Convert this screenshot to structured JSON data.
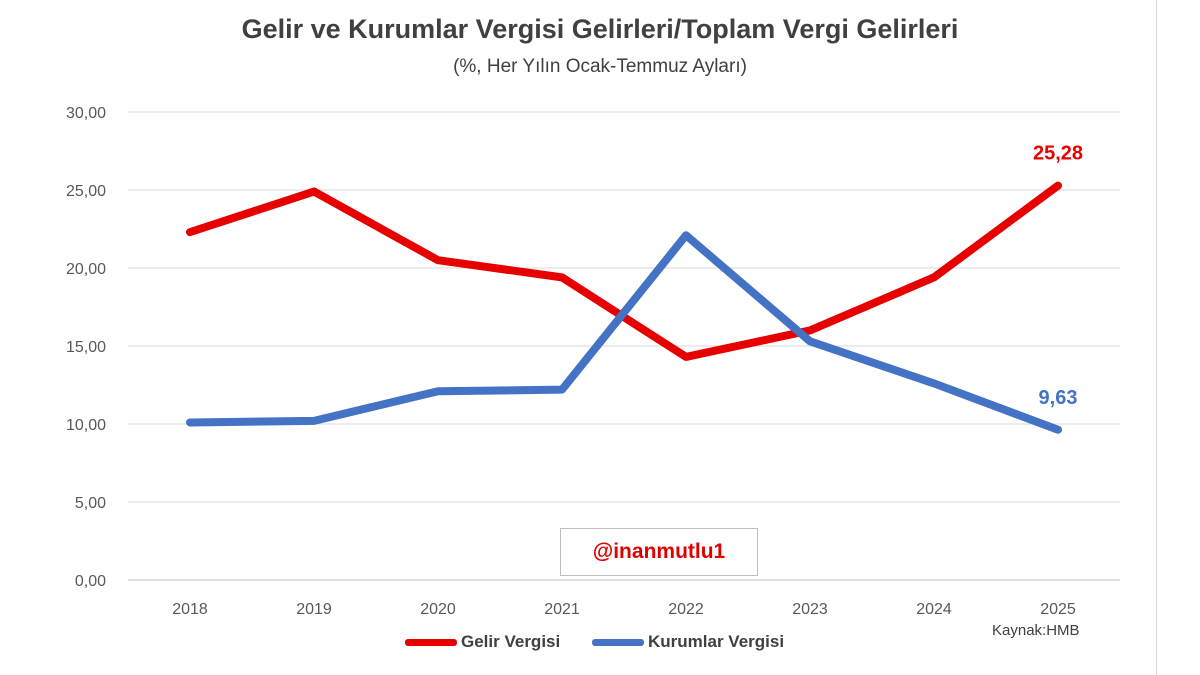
{
  "chart_data": {
    "type": "line",
    "title": "Gelir ve Kurumlar Vergisi Gelirleri/Toplam Vergi Gelirleri",
    "subtitle": "(%, Her Yılın Ocak-Temmuz Ayları)",
    "x": [
      "2018",
      "2019",
      "2020",
      "2021",
      "2022",
      "2023",
      "2024",
      "2025"
    ],
    "ylim": [
      0,
      30
    ],
    "yticks": [
      "0,00",
      "5,00",
      "10,00",
      "15,00",
      "20,00",
      "25,00",
      "30,00"
    ],
    "grid": true,
    "legend": "bottom",
    "series": [
      {
        "name": "Gelir Vergisi",
        "color": "#e60000",
        "values": [
          22.3,
          24.9,
          20.5,
          19.4,
          14.3,
          16.0,
          19.4,
          25.28
        ]
      },
      {
        "name": "Kurumlar Vergisi",
        "color": "#4472c4",
        "values": [
          10.1,
          10.2,
          12.1,
          12.2,
          22.1,
          15.3,
          12.6,
          9.63
        ]
      }
    ],
    "annotations": [
      {
        "text": "25,28",
        "series": 0,
        "index": 7,
        "color": "#e60000"
      },
      {
        "text": "9,63",
        "series": 1,
        "index": 7,
        "color": "#4472c4"
      }
    ]
  },
  "watermark": "@inanmutlu1",
  "source": "Kaynak:HMB"
}
